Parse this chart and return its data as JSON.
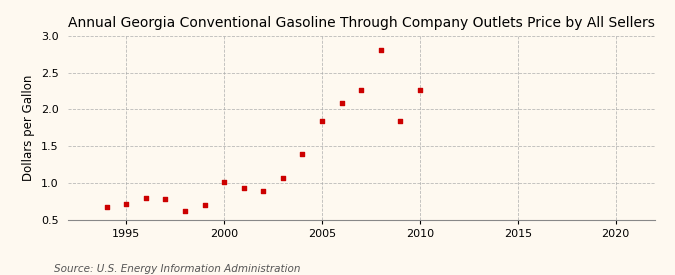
{
  "title": "Annual Georgia Conventional Gasoline Through Company Outlets Price by All Sellers",
  "ylabel": "Dollars per Gallon",
  "source": "Source: U.S. Energy Information Administration",
  "background_color": "#fef9f0",
  "plot_bg_color": "#fef9f0",
  "marker_color": "#cc0000",
  "years": [
    1994,
    1995,
    1996,
    1997,
    1998,
    1999,
    2000,
    2001,
    2002,
    2003,
    2004,
    2005,
    2006,
    2007,
    2008,
    2009,
    2010
  ],
  "values": [
    0.68,
    0.72,
    0.8,
    0.78,
    0.62,
    0.7,
    1.01,
    0.94,
    0.89,
    1.07,
    1.39,
    1.84,
    2.09,
    2.26,
    2.8,
    1.85,
    2.26
  ],
  "xlim": [
    1992,
    2022
  ],
  "ylim": [
    0.5,
    3.0
  ],
  "yticks": [
    0.5,
    1.0,
    1.5,
    2.0,
    2.5,
    3.0
  ],
  "xticks": [
    1995,
    2000,
    2005,
    2010,
    2015,
    2020
  ],
  "title_fontsize": 10,
  "label_fontsize": 8.5,
  "tick_fontsize": 8,
  "source_fontsize": 7.5
}
